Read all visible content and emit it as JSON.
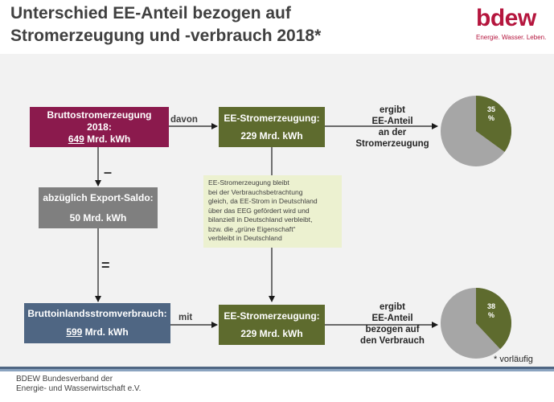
{
  "header": {
    "title_line1": "Unterschied EE-Anteil bezogen auf",
    "title_line2": "Stromerzeugung und -verbrauch 2018*"
  },
  "logo": {
    "wordmark": "bdew",
    "tagline": "Energie. Wasser. Leben.",
    "color": "#b5163e"
  },
  "boxes": {
    "bruttostrom": {
      "line1": "Bruttostromerzeugung",
      "line2": "2018:",
      "value": "649",
      "unit": " Mrd. kWh",
      "color": "#8b1a4d"
    },
    "ee_top": {
      "line1": "EE-Stromerzeugung:",
      "line2": "229 Mrd. kWh",
      "color": "#5e6b2e"
    },
    "export": {
      "line1": "abzüglich Export-Saldo:",
      "line2": "50 Mrd. kWh",
      "color": "#7f7f7f"
    },
    "inland": {
      "line1": "Bruttoinlandsstromverbrauch:",
      "value": "599",
      "unit": " Mrd. kWh",
      "color": "#4f6683"
    },
    "ee_bottom": {
      "line1": "EE-Stromerzeugung:",
      "line2": "229 Mrd. kWh",
      "color": "#5e6b2e"
    }
  },
  "connectors": {
    "davon": "davon",
    "mit": "mit",
    "minus": "–",
    "equals": "="
  },
  "note": {
    "lines": [
      "EE-Stromerzeugung bleibt",
      "bei der Verbrauchsbetrachtung",
      "gleich, da EE-Strom in Deutschland",
      "über das EEG gefördert wird und",
      "bilanziell in Deutschland verbleibt,",
      "bzw. die „grüne Eigenschaft“",
      "verbleibt in Deutschland"
    ]
  },
  "result_top": {
    "lines": [
      "ergibt",
      "EE-Anteil",
      "an der",
      "Stromerzeugung"
    ]
  },
  "result_bottom": {
    "lines": [
      "ergibt",
      "EE-Anteil",
      "bezogen auf",
      "den Verbrauch"
    ]
  },
  "pies": {
    "top": {
      "share": 35,
      "line1": "35",
      "line2": "%",
      "share_color": "#5e6b2e",
      "rest_color": "#a6a6a6"
    },
    "bottom": {
      "share": 38,
      "line1": "38",
      "line2": "%",
      "share_color": "#5e6b2e",
      "rest_color": "#a6a6a6"
    }
  },
  "footnote": "* vorläufig",
  "footer": {
    "line1": "BDEW Bundesverband der",
    "line2": "Energie- und Wasserwirtschaft e.V."
  }
}
